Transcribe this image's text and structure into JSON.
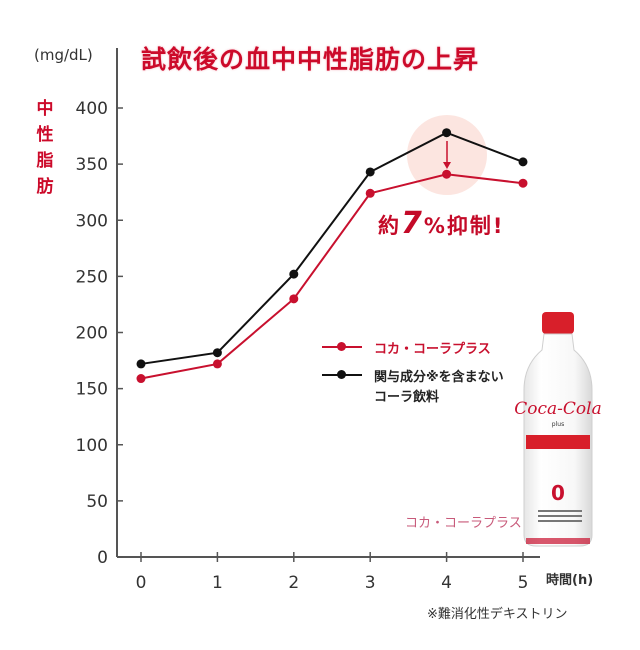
{
  "chart_data": {
    "type": "line",
    "title": "試飲後の血中中性脂肪の上昇",
    "unit": "(mg/dL)",
    "ylabel": "中性脂肪",
    "xlabel": "時間(h)",
    "x": [
      0,
      1,
      2,
      3,
      4,
      5
    ],
    "yticks": [
      0,
      50,
      100,
      150,
      200,
      250,
      300,
      350,
      400
    ],
    "ylim": [
      0,
      400
    ],
    "xlim": [
      0,
      5
    ],
    "grid": false,
    "legend_position": "inside-right",
    "series": [
      {
        "name": "コカ・コーラプラス",
        "color": "#c8102e",
        "values": [
          159,
          172,
          230,
          324,
          341,
          333
        ]
      },
      {
        "name": "関与成分※を含まないコーラ飲料",
        "color": "#111111",
        "values": [
          172,
          182,
          252,
          343,
          378,
          352
        ]
      }
    ],
    "annotations": [
      {
        "text": "約7%抑制!",
        "x": 4,
        "note": "highlight circle with down arrow between series at t=4"
      }
    ]
  },
  "header": {
    "unit": "(mg/dL)",
    "title": "試飲後の血中中性脂肪の上昇"
  },
  "axis": {
    "y_label_chars": [
      "中",
      "性",
      "脂",
      "肪"
    ],
    "y_ticks": [
      "0",
      "50",
      "100",
      "150",
      "200",
      "250",
      "300",
      "350",
      "400"
    ],
    "x_ticks": [
      "0",
      "1",
      "2",
      "3",
      "4",
      "5"
    ],
    "x_label": "時間(h)"
  },
  "callout": {
    "prefix": "約",
    "number": "7",
    "suffix": "%抑制!"
  },
  "legend": {
    "red_label": "コカ・コーラプラス",
    "black_label_line1": "関与成分※を含まない",
    "black_label_line2": "コーラ飲料"
  },
  "product": {
    "caption": "コカ・コーラプラス",
    "brand": "Coca-Cola",
    "sub": "plus"
  },
  "footnote": "※難消化性デキストリン",
  "colors": {
    "accent_red": "#c8102e",
    "black_series": "#111111",
    "highlight": "#fbe0da"
  }
}
